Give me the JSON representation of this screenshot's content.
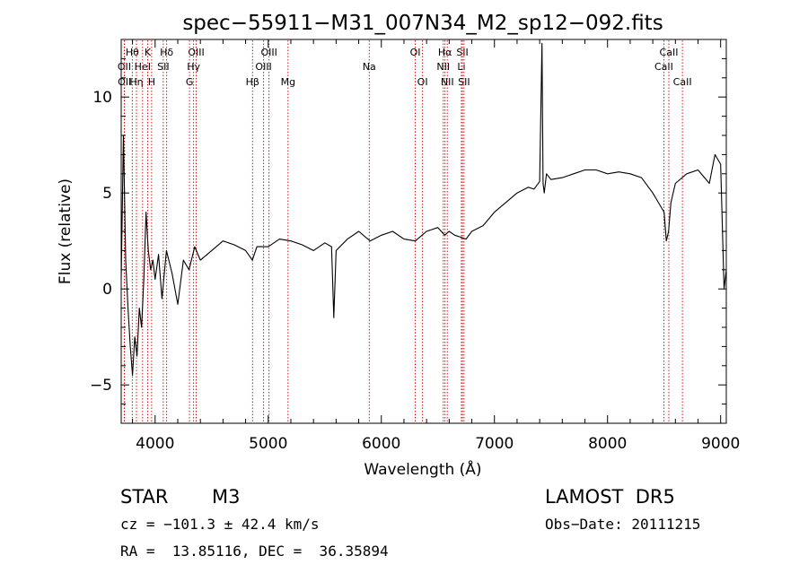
{
  "chart_data": {
    "type": "line",
    "title": "spec−55911−M31_007N34_M2_sp12−092.fits",
    "xlabel": "Wavelength (Å)",
    "ylabel": "Flux (relative)",
    "xlim": [
      3700,
      9050
    ],
    "ylim": [
      -7,
      13
    ],
    "xticks": [
      4000,
      5000,
      6000,
      7000,
      8000,
      9000
    ],
    "xtick_labels": [
      "4000",
      "5000",
      "6000",
      "7000",
      "8000",
      "9000"
    ],
    "yticks": [
      -5,
      0,
      5,
      10
    ],
    "ytick_labels": [
      "−5",
      "0",
      "5",
      "10"
    ],
    "line_color": "#000000",
    "marker_color": "#cc0000",
    "series": [
      {
        "x": [
          3700,
          3720,
          3740,
          3760,
          3780,
          3800,
          3820,
          3840,
          3860,
          3880,
          3900,
          3920,
          3940,
          3960,
          3980,
          4000,
          4030,
          4060,
          4100,
          4150,
          4200,
          4250,
          4300,
          4350,
          4400,
          4500,
          4600,
          4700,
          4800,
          4860,
          4900,
          5000,
          5100,
          5200,
          5300,
          5400,
          5500,
          5560,
          5580,
          5600,
          5700,
          5800,
          5900,
          6000,
          6100,
          6200,
          6300,
          6400,
          6500,
          6560,
          6600,
          6650,
          6700,
          6750,
          6800,
          6900,
          7000,
          7100,
          7200,
          7300,
          7350,
          7400,
          7420,
          7430,
          7440,
          7460,
          7500,
          7600,
          7700,
          7800,
          7900,
          8000,
          8100,
          8200,
          8300,
          8400,
          8450,
          8500,
          8520,
          8540,
          8560,
          8600,
          8700,
          8800,
          8900,
          8950,
          9000,
          9030,
          9050
        ],
        "y": [
          0.5,
          8.0,
          1.5,
          -1.0,
          -3.0,
          -4.5,
          -2.5,
          -3.5,
          -1.0,
          -2.0,
          0.5,
          4.0,
          2.0,
          1.0,
          1.5,
          0.5,
          1.8,
          -0.5,
          2.0,
          0.8,
          -0.8,
          1.5,
          1.0,
          2.2,
          1.5,
          2.0,
          2.5,
          2.3,
          2.0,
          1.5,
          2.2,
          2.2,
          2.6,
          2.5,
          2.3,
          2.0,
          2.4,
          2.2,
          -1.5,
          2.0,
          2.6,
          3.0,
          2.5,
          2.8,
          3.0,
          2.6,
          2.5,
          3.0,
          3.2,
          2.8,
          3.0,
          2.8,
          2.7,
          2.6,
          3.0,
          3.3,
          4.0,
          4.5,
          5.0,
          5.3,
          5.2,
          5.6,
          12.8,
          5.5,
          5.0,
          6.0,
          5.7,
          5.8,
          6.0,
          6.2,
          6.2,
          6.0,
          6.1,
          6.0,
          5.8,
          5.0,
          4.5,
          4.0,
          2.5,
          3.0,
          4.5,
          5.5,
          6.0,
          6.2,
          5.5,
          7.0,
          6.5,
          0.0,
          1.0
        ]
      }
    ],
    "line_markers": [
      {
        "label": "Hθ",
        "x": 3798,
        "row": 1
      },
      {
        "label": "Hη",
        "x": 3835,
        "row": 3
      },
      {
        "label": "OII",
        "x": 3727,
        "row": 2
      },
      {
        "label": "OII",
        "x": 3729,
        "row": 3
      },
      {
        "label": "HeI",
        "x": 3889,
        "row": 2
      },
      {
        "label": "K",
        "x": 3934,
        "row": 1
      },
      {
        "label": "H",
        "x": 3969,
        "row": 3
      },
      {
        "label": "Hδ",
        "x": 4102,
        "row": 1
      },
      {
        "label": "SII",
        "x": 4072,
        "row": 2
      },
      {
        "label": "OIII",
        "x": 4363,
        "row": 1
      },
      {
        "label": "Hγ",
        "x": 4340,
        "row": 2
      },
      {
        "label": "G",
        "x": 4304,
        "row": 3
      },
      {
        "label": "Hβ",
        "x": 4861,
        "row": 3
      },
      {
        "label": "OIII",
        "x": 5007,
        "row": 1
      },
      {
        "label": "OIII",
        "x": 4959,
        "row": 2
      },
      {
        "label": "Mg",
        "x": 5175,
        "row": 3
      },
      {
        "label": "Na",
        "x": 5893,
        "row": 2
      },
      {
        "label": "OI",
        "x": 6300,
        "row": 1
      },
      {
        "label": "OI",
        "x": 6364,
        "row": 3
      },
      {
        "label": "Hα",
        "x": 6563,
        "row": 1
      },
      {
        "label": "NII",
        "x": 6548,
        "row": 2
      },
      {
        "label": "NII",
        "x": 6583,
        "row": 3
      },
      {
        "label": "SII",
        "x": 6717,
        "row": 1
      },
      {
        "label": "Li",
        "x": 6708,
        "row": 2
      },
      {
        "label": "SII",
        "x": 6731,
        "row": 3
      },
      {
        "label": "CaII",
        "x": 8542,
        "row": 1
      },
      {
        "label": "CaII",
        "x": 8498,
        "row": 2
      },
      {
        "label": "CaII",
        "x": 8662,
        "row": 3
      }
    ]
  },
  "info": {
    "object_type": "STAR",
    "subclass": "M3",
    "survey": "LAMOST  DR5",
    "velocity": "cz = −101.3 ± 42.4 km/s",
    "obs_date": "Obs−Date: 20111215",
    "coords": "RA =  13.85116, DEC =  36.35894"
  }
}
